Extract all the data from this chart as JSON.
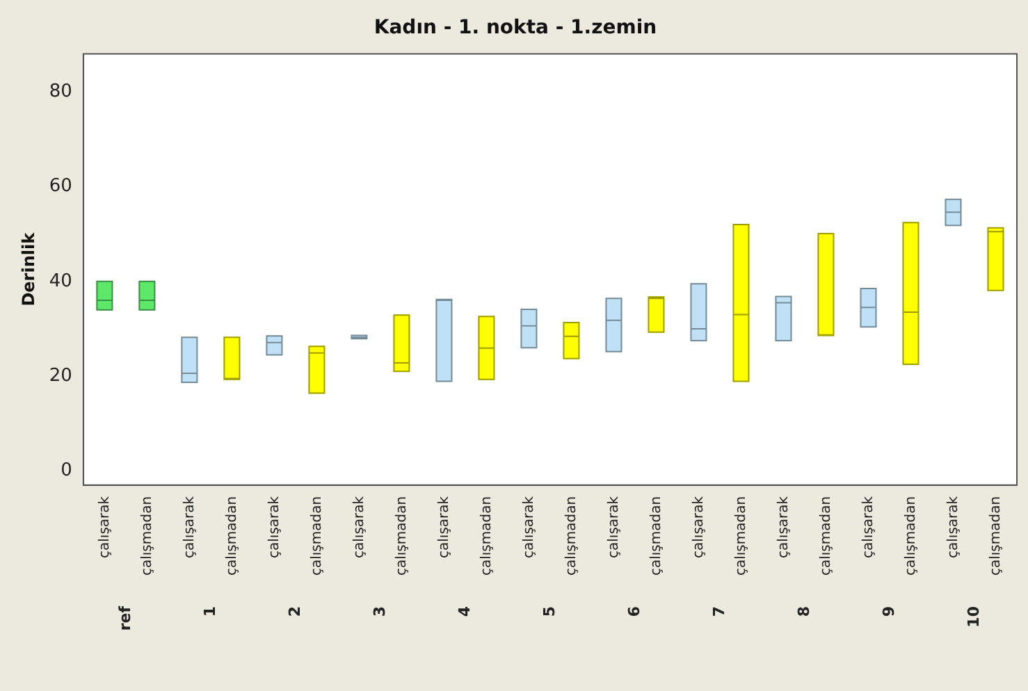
{
  "chart_data": {
    "type": "box",
    "title": "Kadın - 1. nokta - 1.zemin",
    "ylabel": "Derinlik",
    "categories": [
      "çalışarak",
      "çalışmadan",
      "çalışarak",
      "çalışmadan",
      "çalışarak",
      "çalışmadan",
      "çalışarak",
      "çalışmadan",
      "çalışarak",
      "çalışmadan",
      "çalışarak",
      "çalışmadan",
      "çalışarak",
      "çalışmadan",
      "çalışarak",
      "çalışmadan",
      "çalışarak",
      "çalışmadan",
      "çalışarak",
      "çalışmadan",
      "çalışarak",
      "çalışmadan"
    ],
    "annotations": [
      "ref",
      "1",
      "2",
      "3",
      "4",
      "5",
      "6",
      "7",
      "8",
      "9",
      "10"
    ],
    "colors": [
      "#5ee86a",
      "#5ee86a",
      "#bfe0f5",
      "#ffff00",
      "#bfe0f5",
      "#ffff00",
      "#bfe0f5",
      "#ffff00",
      "#bfe0f5",
      "#ffff00",
      "#bfe0f5",
      "#ffff00",
      "#bfe0f5",
      "#ffff00",
      "#bfe0f5",
      "#ffff00",
      "#bfe0f5",
      "#ffff00",
      "#bfe0f5",
      "#ffff00",
      "#bfe0f5",
      "#ffff00"
    ],
    "boxes": [
      {
        "low": 34,
        "q1": 34,
        "median": 36,
        "q3": 40,
        "high": 40
      },
      {
        "low": 34,
        "q1": 34,
        "median": 36,
        "q3": 40,
        "high": 40
      },
      {
        "low": 18.7,
        "q1": 18.7,
        "median": 20.6,
        "q3": 28.2,
        "high": 28.2
      },
      {
        "low": 19.3,
        "q1": 19.3,
        "median": 19.5,
        "q3": 28.2,
        "high": 28.2
      },
      {
        "low": 24.5,
        "q1": 24.5,
        "median": 27.1,
        "q3": 28.5,
        "high": 28.5
      },
      {
        "low": 16.4,
        "q1": 16.4,
        "median": 24.9,
        "q3": 26.3,
        "high": 26.3
      },
      {
        "low": 27.9,
        "q1": 27.9,
        "median": 28.2,
        "q3": 28.6,
        "high": 28.6
      },
      {
        "low": 21,
        "q1": 21,
        "median": 22.8,
        "q3": 32.9,
        "high": 32.9
      },
      {
        "low": 18.9,
        "q1": 18.9,
        "median": 36,
        "q3": 36.2,
        "high": 36.2
      },
      {
        "low": 19.3,
        "q1": 19.3,
        "median": 25.9,
        "q3": 32.6,
        "high": 32.6
      },
      {
        "low": 26,
        "q1": 26,
        "median": 30.6,
        "q3": 34.1,
        "high": 34.1
      },
      {
        "low": 23.7,
        "q1": 23.7,
        "median": 28.4,
        "q3": 31.3,
        "high": 31.3
      },
      {
        "low": 25.2,
        "q1": 25.2,
        "median": 31.8,
        "q3": 36.4,
        "high": 36.4
      },
      {
        "low": 29.3,
        "q1": 29.3,
        "median": 36.4,
        "q3": 36.7,
        "high": 36.7
      },
      {
        "low": 27.5,
        "q1": 27.5,
        "median": 30,
        "q3": 39.5,
        "high": 39.5
      },
      {
        "low": 18.9,
        "q1": 18.9,
        "median": 33,
        "q3": 52,
        "high": 52
      },
      {
        "low": 27.5,
        "q1": 27.5,
        "median": 35.5,
        "q3": 36.8,
        "high": 36.8
      },
      {
        "low": 28.6,
        "q1": 28.6,
        "median": 28.7,
        "q3": 50.1,
        "high": 50.1
      },
      {
        "low": 30.4,
        "q1": 30.4,
        "median": 34.5,
        "q3": 38.5,
        "high": 38.5
      },
      {
        "low": 22.5,
        "q1": 22.5,
        "median": 33.5,
        "q3": 52.4,
        "high": 52.4
      },
      {
        "low": 51.8,
        "q1": 51.8,
        "median": 54.6,
        "q3": 57.3,
        "high": 57.3
      },
      {
        "low": 38.1,
        "q1": 38.1,
        "median": 50.5,
        "q3": 51.3,
        "high": 51.3
      }
    ],
    "ylim": [
      -3,
      88
    ],
    "yticks": [
      0,
      20,
      40,
      60,
      80
    ],
    "grid": false,
    "legend": false
  }
}
